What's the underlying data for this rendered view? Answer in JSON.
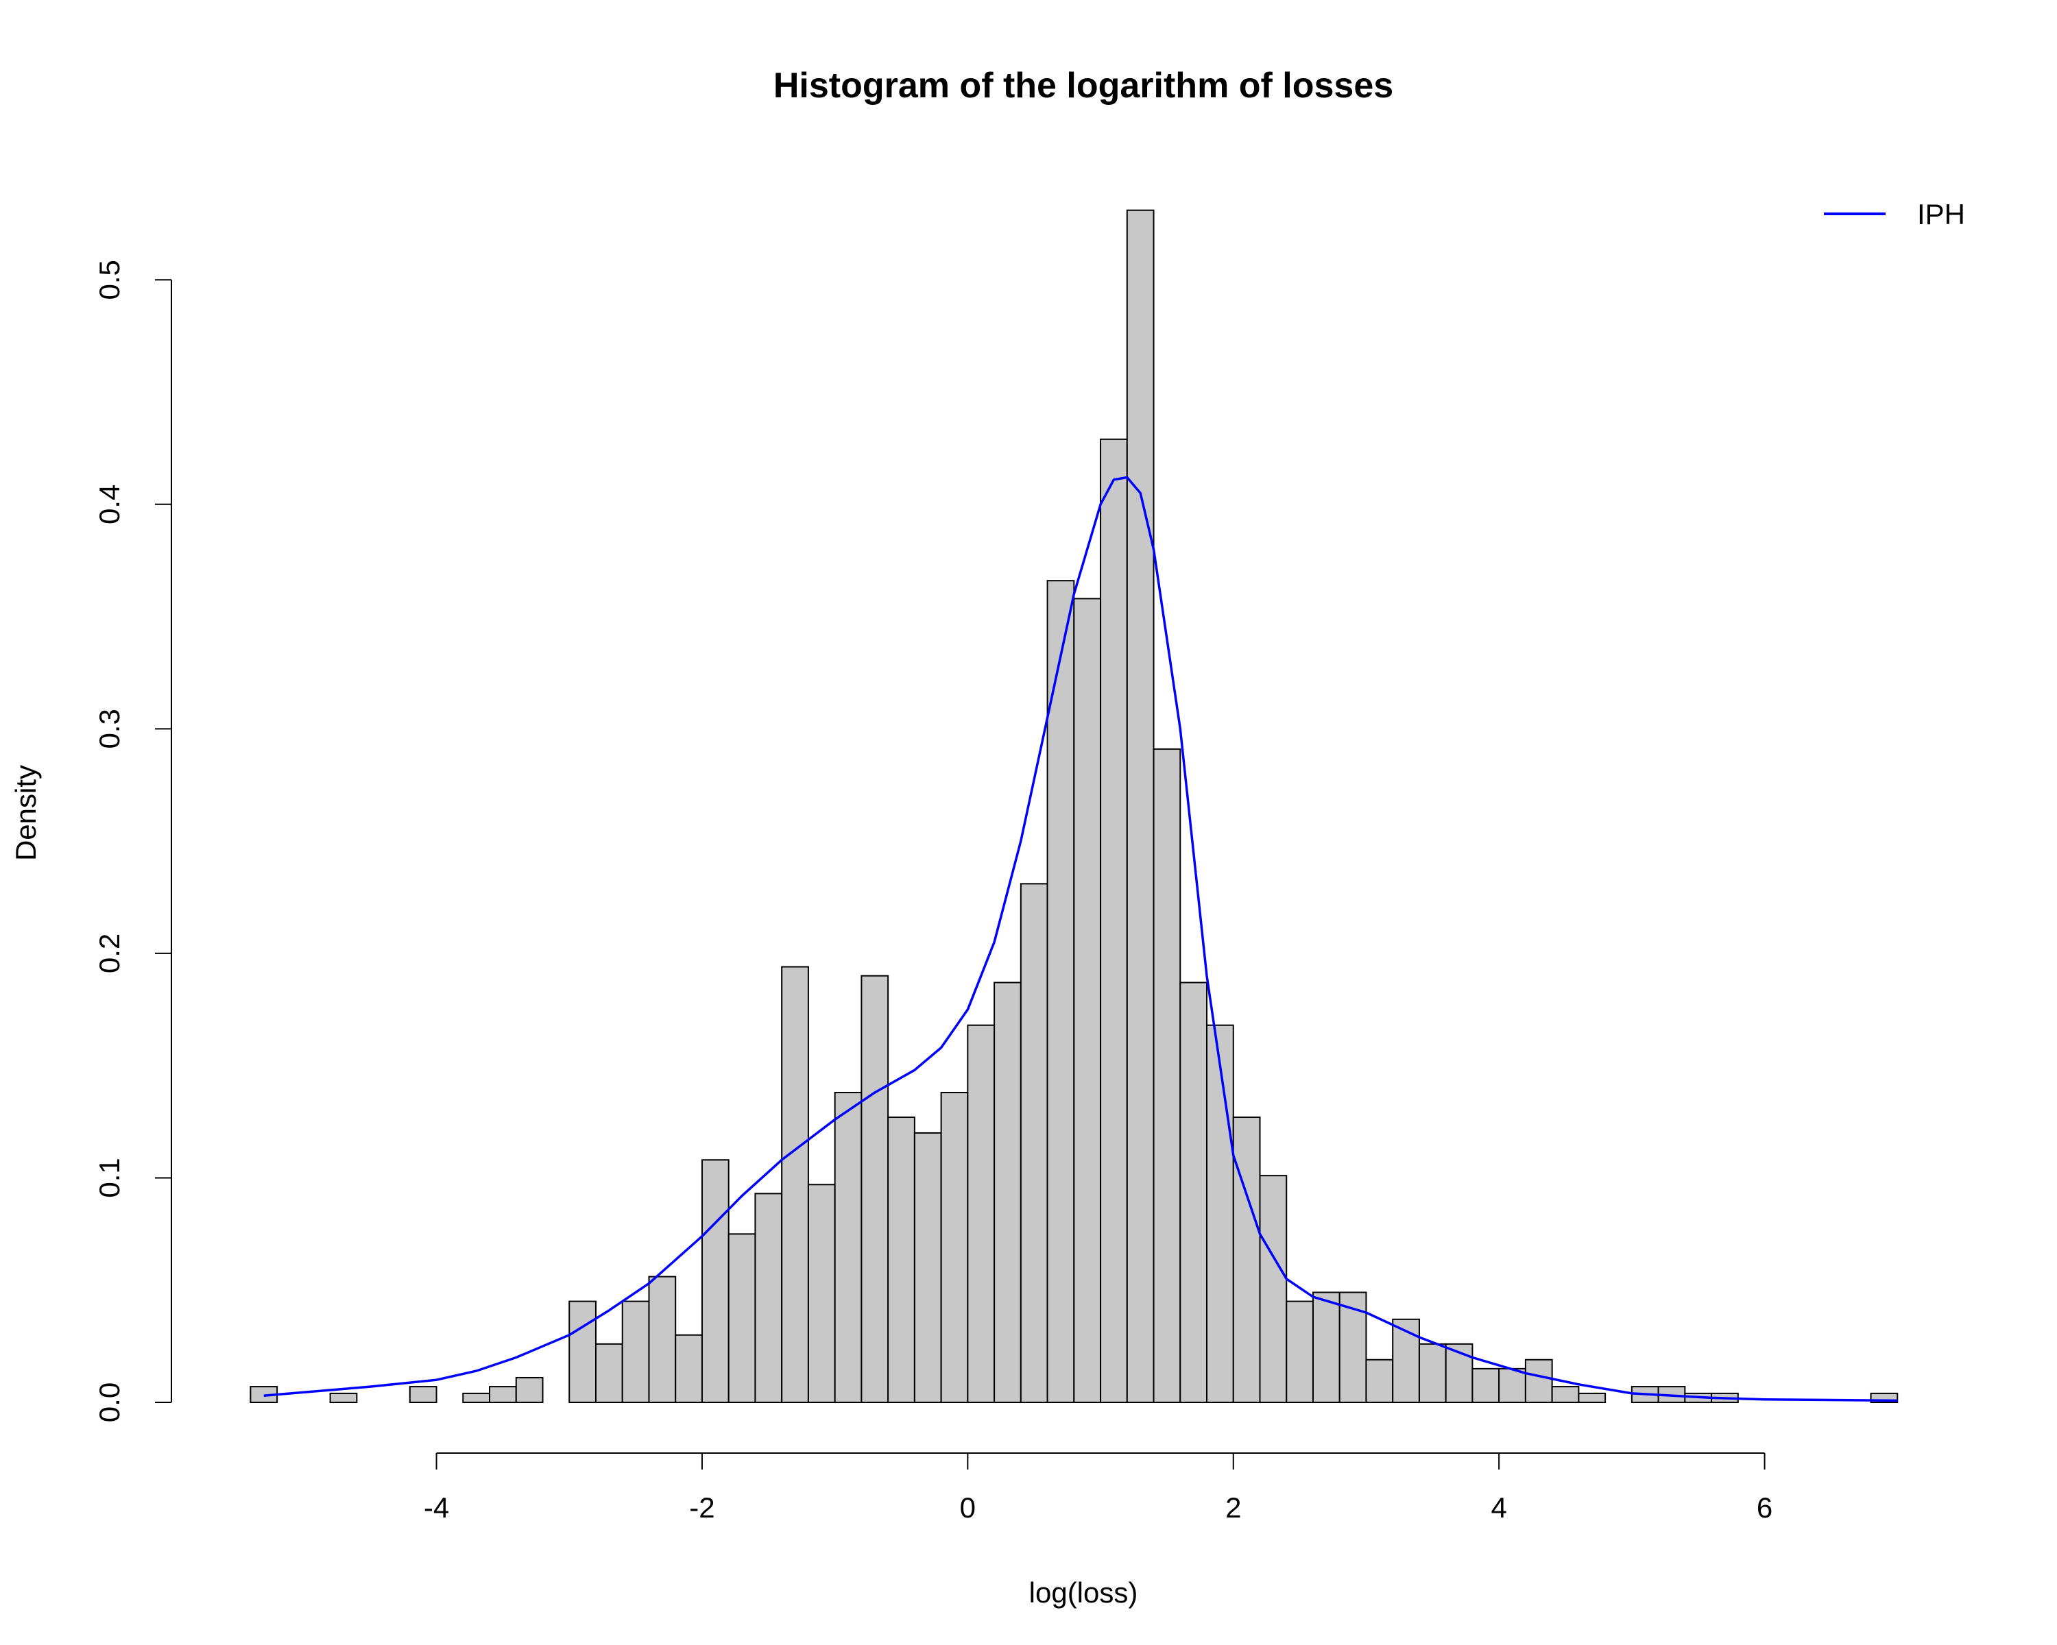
{
  "chart_data": {
    "type": "bar",
    "title": "Histogram of the logarithm of losses",
    "xlabel": "log(loss)",
    "ylabel": "Density",
    "xlim": [
      -5.5,
      7.2
    ],
    "ylim": [
      0,
      0.53
    ],
    "x_ticks": [
      -4,
      -2,
      0,
      2,
      4,
      6
    ],
    "x_tick_labels": [
      "-4",
      "-2",
      "0",
      "2",
      "4",
      "6"
    ],
    "y_ticks": [
      0.0,
      0.1,
      0.2,
      0.3,
      0.4,
      0.5
    ],
    "y_tick_labels": [
      "0.0",
      "0.1",
      "0.2",
      "0.3",
      "0.4",
      "0.5"
    ],
    "bin_width": 0.2,
    "bin_start": -5.4,
    "densities": [
      0.007,
      0,
      0,
      0.004,
      0,
      0,
      0.007,
      0,
      0.004,
      0.007,
      0.011,
      0,
      0.045,
      0.026,
      0.045,
      0.056,
      0.03,
      0.108,
      0.075,
      0.093,
      0.194,
      0.097,
      0.138,
      0.19,
      0.127,
      0.12,
      0.138,
      0.168,
      0.187,
      0.231,
      0.366,
      0.358,
      0.429,
      0.531,
      0.291,
      0.187,
      0.168,
      0.127,
      0.101,
      0.045,
      0.049,
      0.049,
      0.019,
      0.037,
      0.026,
      0.026,
      0.015,
      0.015,
      0.019,
      0.007,
      0.004,
      0,
      0.007,
      0.007,
      0.004,
      0.004,
      0,
      0,
      0,
      0,
      0,
      0.004
    ],
    "bar_fill": "#c8c8c8",
    "bar_stroke": "#000000",
    "grid": false,
    "legend_position": "top-right",
    "series": [
      {
        "name": "IPH",
        "type": "line",
        "color": "#0000ff",
        "x": [
          -5.3,
          -4.5,
          -4.0,
          -3.7,
          -3.4,
          -3.0,
          -2.7,
          -2.4,
          -2.0,
          -1.7,
          -1.4,
          -1.0,
          -0.7,
          -0.4,
          -0.2,
          0,
          0.2,
          0.4,
          0.6,
          0.8,
          1.0,
          1.1,
          1.2,
          1.3,
          1.4,
          1.6,
          1.8,
          2.0,
          2.2,
          2.4,
          2.6,
          3.0,
          3.4,
          3.8,
          4.2,
          4.6,
          5.0,
          5.6,
          6.0,
          7.0
        ],
        "y": [
          0.003,
          0.007,
          0.01,
          0.014,
          0.02,
          0.03,
          0.041,
          0.053,
          0.074,
          0.092,
          0.108,
          0.126,
          0.138,
          0.148,
          0.158,
          0.175,
          0.205,
          0.25,
          0.305,
          0.36,
          0.4,
          0.411,
          0.412,
          0.405,
          0.38,
          0.3,
          0.19,
          0.11,
          0.075,
          0.055,
          0.047,
          0.04,
          0.029,
          0.02,
          0.013,
          0.008,
          0.004,
          0.002,
          0.0013,
          0.0008
        ]
      }
    ]
  }
}
